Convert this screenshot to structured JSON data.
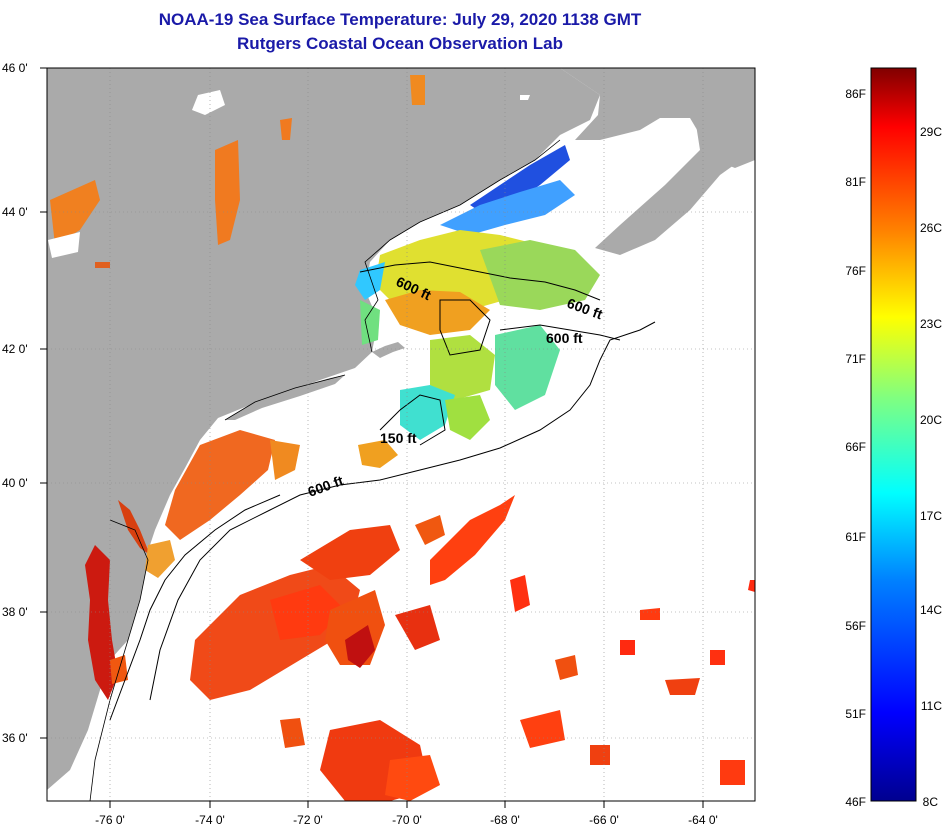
{
  "title": {
    "line1": "NOAA-19 Sea Surface Temperature:  July 29, 2020 1138 GMT",
    "line2": "Rutgers Coastal Ocean Observation Lab"
  },
  "map": {
    "lat_labels": [
      "46 0'",
      "44 0'",
      "42 0'",
      "40 0'",
      "38 0'",
      "36 0'"
    ],
    "lon_labels": [
      "-76 0'",
      "-74 0'",
      "-72 0'",
      "-70 0'",
      "-68 0'",
      "-66 0'",
      "-64 0'"
    ],
    "contour_labels": [
      "600 ft",
      "600 ft",
      "600 ft",
      "150 ft",
      "600 ft"
    ]
  },
  "legend": {
    "fahrenheit": [
      "86F",
      "81F",
      "76F",
      "71F",
      "66F",
      "61F",
      "56F",
      "51F",
      "46F"
    ],
    "celsius": [
      "29C",
      "26C",
      "23C",
      "20C",
      "17C",
      "14C",
      "11C",
      "8C"
    ],
    "colors": [
      "#00008f",
      "#0000ff",
      "#0080ff",
      "#00ffff",
      "#80ff80",
      "#ffff00",
      "#ff8000",
      "#ff0000",
      "#800000"
    ]
  }
}
